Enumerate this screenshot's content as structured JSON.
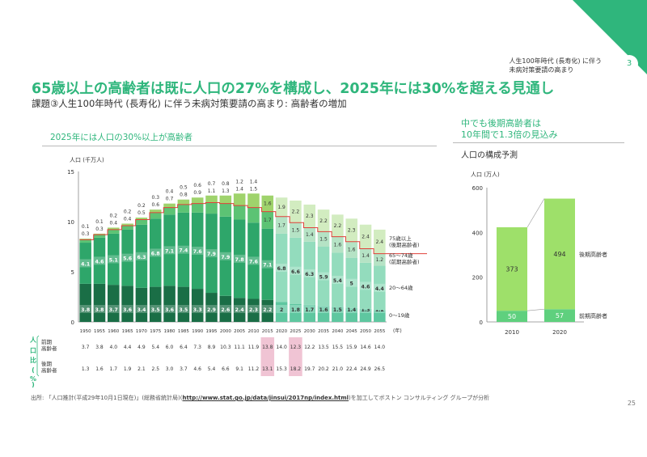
{
  "header": {
    "page_number": "3",
    "top_label_line1": "人生100年時代 (長寿化) に伴う",
    "top_label_line2": "未病対策要請の高まり",
    "title": "65歳以上の高齢者は既に人口の27%を構成し、2025年には30%を超える見通し",
    "subtitle": "課題③人生100年時代 (長寿化) に伴う未病対策要請の高まり: 高齢者の増加"
  },
  "left_panel": {
    "heading": "2025年には人口の30%以上が高齢者"
  },
  "right_panel": {
    "heading_line1": "中でも後期高齢者は",
    "heading_line2": "10年間で1.3倍の見込み",
    "subheading": "人口の構成予測"
  },
  "footer": {
    "source_prefix": "出所: 「人口推計(平成29年10月1日現在)」(総務省統計局)(",
    "source_link": "http://www.stat.go.jp/data/jinsui/2017np/index.html",
    "source_suffix": ")を加工してボストン コンサルティング グループが分析",
    "slide_number": "25"
  },
  "colors": {
    "brand_green": "#2fb67c",
    "age_0_19": "#1a6e46",
    "age_20_64": "#2ea66a",
    "age_65_74": "#5cc374",
    "age_75_plus": "#9fd36c",
    "proj_0_19": "#5ec7a0",
    "proj_20_64": "#93dcbd",
    "proj_65_74": "#b5e3c5",
    "proj_75_plus": "#d2ecc0",
    "total_line": "#e0403a",
    "ratio_highlight": "#f0c4d4",
    "right_bars": "#9ee06a",
    "right_bars_lower": "#5fd07e"
  },
  "chart_data": [
    {
      "type": "bar",
      "stacked": true,
      "ylabel": "人口 (千万人)",
      "xlabel": "(年)",
      "ylim": [
        0,
        15
      ],
      "yticks": [
        "0",
        "5",
        "10",
        "15"
      ],
      "categories": [
        "1950",
        "1955",
        "1960",
        "1965",
        "1970",
        "1975",
        "1980",
        "1985",
        "1990",
        "1995",
        "2000",
        "2005",
        "2010",
        "2015",
        "2020",
        "2025",
        "2030",
        "2035",
        "2040",
        "2045",
        "2050",
        "2055"
      ],
      "projection_from": "2020",
      "series": [
        {
          "name": "0～19歳",
          "values": [
            3.8,
            3.8,
            3.7,
            3.6,
            3.4,
            3.5,
            3.6,
            3.5,
            3.3,
            2.9,
            2.6,
            2.4,
            2.3,
            2.2,
            2.0,
            1.8,
            1.7,
            1.6,
            1.5,
            1.4,
            1.3,
            1.2
          ]
        },
        {
          "name": "20～64歳",
          "values": [
            4.1,
            4.6,
            5.1,
            5.6,
            6.3,
            6.8,
            7.1,
            7.4,
            7.6,
            7.9,
            7.9,
            7.8,
            7.6,
            7.1,
            6.8,
            6.6,
            6.3,
            5.9,
            5.4,
            5.0,
            4.6,
            4.4
          ]
        },
        {
          "name": "65～74歳\n(前期高齢者)",
          "values": [
            0.3,
            0.3,
            0.4,
            0.4,
            0.5,
            0.6,
            0.7,
            0.8,
            0.9,
            1.1,
            1.3,
            1.4,
            1.5,
            1.7,
            1.7,
            1.5,
            1.4,
            1.5,
            1.6,
            1.6,
            1.4,
            1.2
          ]
        },
        {
          "name": "75歳以上\n(後期高齢者)",
          "values": [
            0.1,
            0.1,
            0.2,
            0.2,
            0.2,
            0.3,
            0.4,
            0.5,
            0.6,
            0.7,
            0.8,
            1.2,
            1.4,
            1.6,
            1.9,
            2.2,
            2.3,
            2.2,
            2.2,
            2.3,
            2.4,
            2.4
          ]
        }
      ],
      "total_line_labels": [
        "0～19歳",
        "20～64歳",
        "65～74歳",
        "(前期高齢者)",
        "75歳以上",
        "(後期高齢者)"
      ],
      "ratio_table": {
        "group_label": "人口比(%)",
        "rows": [
          {
            "label_line1": "前期",
            "label_line2": "高齢者",
            "values": [
              "3.7",
              "3.8",
              "4.0",
              "4.4",
              "4.9",
              "5.4",
              "6.0",
              "6.4",
              "7.3",
              "8.9",
              "10.3",
              "11.1",
              "11.9",
              "13.8",
              "14.0",
              "12.3",
              "12.2",
              "13.5",
              "15.5",
              "15.9",
              "14.6",
              "14.0"
            ]
          },
          {
            "label_line1": "後期",
            "label_line2": "高齢者",
            "values": [
              "1.3",
              "1.6",
              "1.7",
              "1.9",
              "2.1",
              "2.5",
              "3.0",
              "3.7",
              "4.6",
              "5.4",
              "6.6",
              "9.1",
              "11.2",
              "13.1",
              "15.3",
              "18.2",
              "19.7",
              "20.2",
              "21.0",
              "22.4",
              "24.9",
              "26.5"
            ]
          }
        ],
        "highlighted_columns": [
          "2015",
          "2025"
        ]
      }
    },
    {
      "type": "bar",
      "stacked": true,
      "ylabel": "人口 (万人)",
      "ylim": [
        0,
        600
      ],
      "yticks": [
        "0",
        "200",
        "400",
        "600"
      ],
      "categories": [
        "2010",
        "2020"
      ],
      "series": [
        {
          "name": "前期高齢者",
          "values": [
            50,
            57
          ]
        },
        {
          "name": "後期高齢者",
          "values": [
            373,
            494
          ]
        }
      ]
    }
  ]
}
